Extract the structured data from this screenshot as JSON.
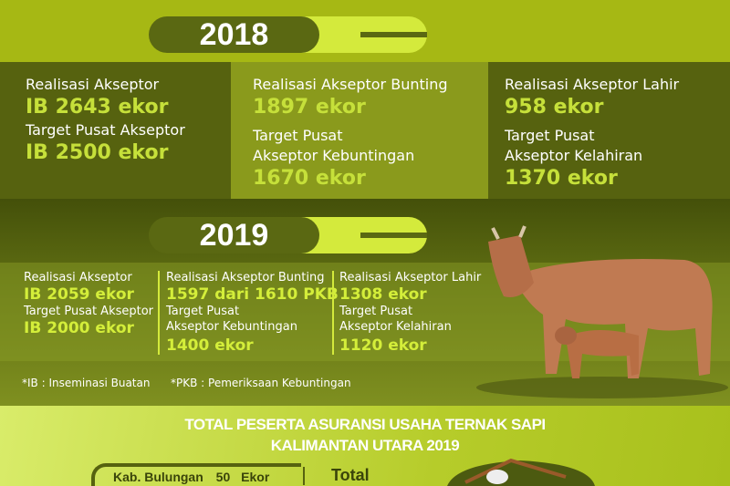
{
  "y2018": {
    "year": "2018",
    "col1": {
      "l1": "Realisasi Akseptor",
      "n1": "IB 2643 ekor",
      "l2": "Target Pusat Akseptor",
      "n2": "IB 2500 ekor"
    },
    "col2": {
      "l1": "Realisasi Akseptor Bunting",
      "n1": "1897 ekor",
      "l2a": "Target Pusat",
      "l2b": "Akseptor Kebuntingan",
      "n2": "1670 ekor"
    },
    "col3": {
      "l1": "Realisasi Akseptor Lahir",
      "n1": "958 ekor",
      "l2a": "Target Pusat",
      "l2b": "Akseptor Kelahiran",
      "n2": "1370 ekor"
    }
  },
  "y2019": {
    "year": "2019",
    "col1": {
      "l1": "Realisasi Akseptor",
      "n1": "IB 2059 ekor",
      "l2": "Target Pusat Akseptor",
      "n2": "IB 2000 ekor"
    },
    "col2": {
      "l1": "Realisasi Akseptor Bunting",
      "n1": "1597 dari 1610 PKB",
      "l2a": "Target Pusat",
      "l2b": "Akseptor Kebuntingan",
      "n2": "1400 ekor"
    },
    "col3": {
      "l1": "Realisasi Akseptor Lahir",
      "n1": "1308 ekor",
      "l2a": "Target Pusat",
      "l2b": "Akseptor Kelahiran",
      "n2": "1120 ekor"
    }
  },
  "footnotes": [
    "*IB : Inseminasi Buatan",
    "*PKB : Pemeriksaan Kebuntingan"
  ],
  "insurance": {
    "title1": "TOTAL PESERTA ASURANSI USAHA TERNAK SAPI",
    "title2": "KALIMANTAN UTARA 2019",
    "row": {
      "region": "Kab. Bulungan",
      "count": "50",
      "unit": "Ekor"
    },
    "total_label": "Total"
  },
  "colors": {
    "accent": "#c6e03a",
    "dark": "#56620f",
    "mid": "#8a9a1c"
  }
}
